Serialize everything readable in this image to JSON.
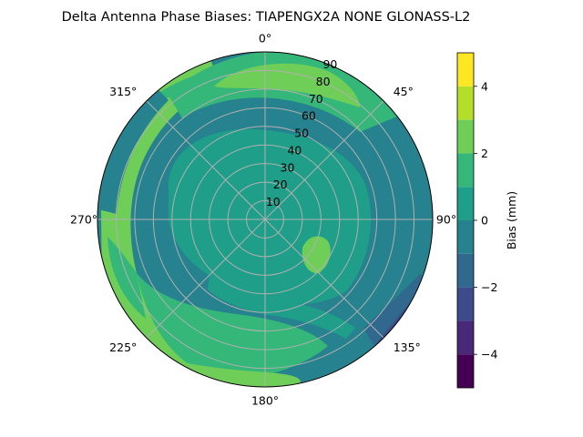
{
  "chart_data": {
    "type": "heatmap",
    "subtype": "polar-contour",
    "title": "Delta Antenna Phase Biases: TIAPENGX2A      NONE GLONASS-L2",
    "angular_ticks": [
      "0°",
      "45°",
      "90°",
      "135°",
      "180°",
      "225°",
      "270°",
      "315°"
    ],
    "radial_ticks": [
      "10",
      "20",
      "30",
      "40",
      "50",
      "60",
      "70",
      "80",
      "90"
    ],
    "radial_range": [
      0,
      90
    ],
    "grid": true,
    "colorbar": {
      "label": "Bias (mm)",
      "range": [
        -5,
        5
      ],
      "ticks": [
        "−4",
        "−2",
        "0",
        "2",
        "4"
      ],
      "levels": [
        -5,
        -4,
        -3,
        -2,
        -1,
        0,
        1,
        2,
        3,
        4,
        5
      ],
      "colors": [
        "#440154",
        "#482878",
        "#3e4a89",
        "#31688e",
        "#26828e",
        "#1f9e89",
        "#35b779",
        "#6ece58",
        "#b5de2b",
        "#fde725"
      ]
    },
    "background_color": "#26828e"
  }
}
